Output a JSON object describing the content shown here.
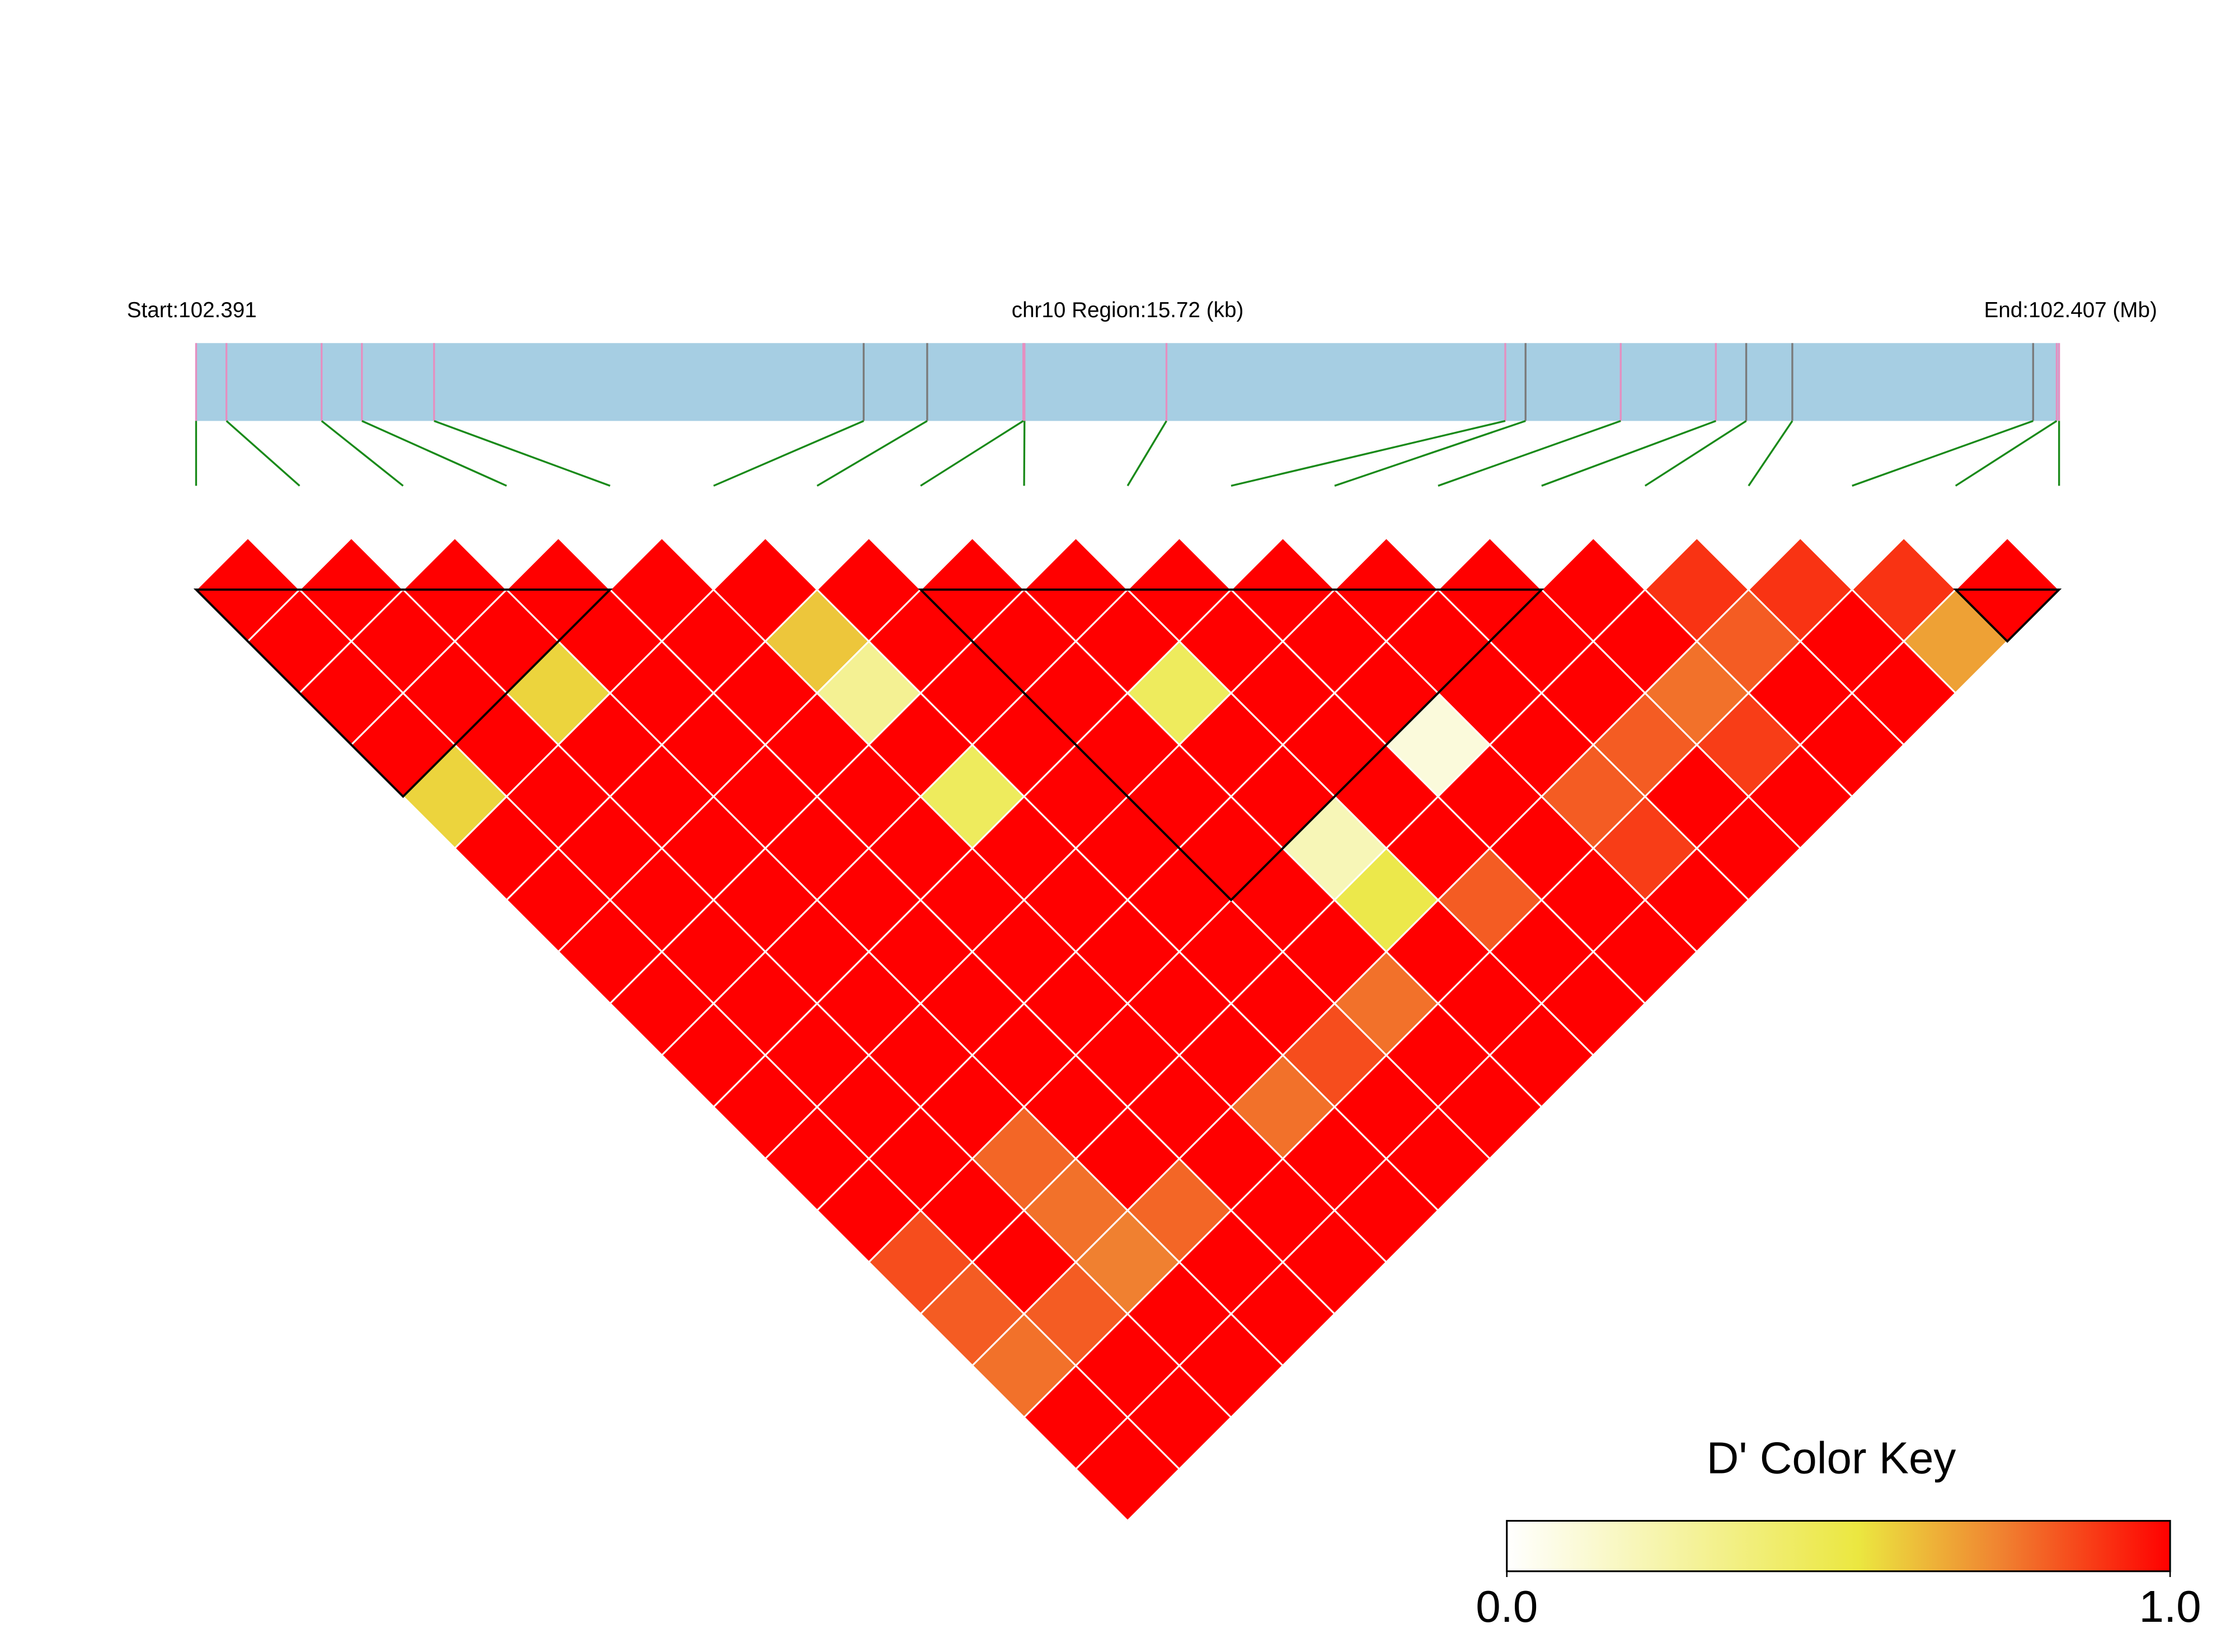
{
  "chart_data": {
    "type": "ld-heatmap",
    "start_label": "Start:102.391",
    "region_label": "chr10 Region:15.72 (kb)",
    "end_label": "End:102.407 (Mb)",
    "xlim": [
      0,
      15.72
    ],
    "snp_positions": [
      0,
      0.256,
      1.059,
      1.399,
      2.008,
      5.633,
      6.169,
      6.98,
      6.99,
      8.188,
      11.047,
      11.218,
      12.021,
      12.824,
      13.08,
      13.469,
      15.501,
      15.7,
      15.72
    ],
    "snp_line_colors": [
      "#e58fc0",
      "#e58fc0",
      "#e58fc0",
      "#e58fc0",
      "#e58fc0",
      "#7a7a7a",
      "#7a7a7a",
      "#e58fc0",
      "#e58fc0",
      "#e58fc0",
      "#e58fc0",
      "#7a7a7a",
      "#e58fc0",
      "#e58fc0",
      "#7a7a7a",
      "#7a7a7a",
      "#7a7a7a",
      "#e58fc0",
      "#e58fc0"
    ],
    "region_color": "#a6cee3",
    "connector_color": "#1a8a1a",
    "dprime": [
      [
        1,
        1,
        1,
        1,
        0.57,
        1,
        1,
        1,
        1,
        1,
        1,
        1,
        1,
        0.85,
        0.82,
        0.78,
        1,
        1
      ],
      [
        1,
        1,
        1,
        1,
        1,
        1,
        1,
        1,
        1,
        1,
        1,
        1,
        1,
        1,
        0.82,
        1,
        1
      ],
      [
        1,
        1,
        0.57,
        1,
        1,
        1,
        1,
        1,
        1,
        1,
        1,
        0.8,
        0.78,
        0.75,
        1,
        1
      ],
      [
        1,
        1,
        1,
        1,
        1,
        1,
        1,
        1,
        1,
        1,
        1,
        1,
        0.8,
        1,
        1
      ],
      [
        1,
        1,
        1,
        1,
        1,
        1,
        1,
        1,
        1,
        1,
        1,
        1,
        1,
        1
      ],
      [
        1,
        0.6,
        0.3,
        1,
        0.45,
        1,
        1,
        1,
        1,
        1,
        0.78,
        1,
        1
      ],
      [
        1,
        1,
        1,
        1,
        1,
        1,
        1,
        1,
        1,
        0.85,
        1,
        1
      ],
      [
        1,
        1,
        1,
        1,
        1,
        1,
        1,
        1,
        0.78,
        1,
        1
      ],
      [
        1,
        1,
        0.45,
        1,
        1,
        0.2,
        0.5,
        1,
        1,
        1
      ],
      [
        1,
        1,
        1,
        1,
        1,
        1,
        0.82,
        1,
        1
      ],
      [
        1,
        1,
        1,
        0.1,
        1,
        1,
        1,
        1
      ],
      [
        1,
        1,
        1,
        1,
        0.82,
        0.88,
        1
      ],
      [
        1,
        1,
        1,
        0.82,
        1,
        1
      ],
      [
        1,
        1,
        0.78,
        0.88,
        1
      ],
      [
        0.9,
        0.82,
        1,
        1
      ],
      [
        0.9,
        1,
        1
      ],
      [
        0.9,
        0.68
      ],
      [
        1
      ]
    ],
    "blocks": [
      [
        0,
        4
      ],
      [
        7,
        13
      ],
      [
        17,
        18
      ]
    ],
    "color_key": {
      "title": "D' Color Key",
      "lim": [
        0,
        1
      ],
      "ticks": [
        {
          "value": 0,
          "label": "0.0"
        },
        {
          "value": 1,
          "label": "1.0"
        }
      ],
      "stops": [
        {
          "value": 0,
          "color": "#ffffff"
        },
        {
          "value": 0.53,
          "color": "#ebe740"
        },
        {
          "value": 0.75,
          "color": "#f08030"
        },
        {
          "value": 1,
          "color": "#ff0000"
        }
      ]
    }
  }
}
